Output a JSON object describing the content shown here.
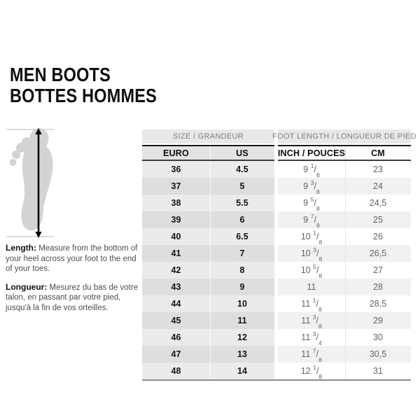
{
  "title": {
    "line1": "MEN BOOTS",
    "line2": "BOTTES HOMMES"
  },
  "foot_diagram": {
    "name": "foot-length-measurement-diagram",
    "elements": [
      "foot-outline",
      "vertical-double-arrow",
      "top-reference-line",
      "bottom-reference-line"
    ]
  },
  "instructions": {
    "length_label": "Length:",
    "length_text": " Measure from the bottom of your heel across your foot to the end of your toes.",
    "longueur_label": "Longueur:",
    "longueur_text": " Mesurez du bas de votre talon, en passant par votre pied, jusqu'à la fin de vos orteilles."
  },
  "table": {
    "group_headers": [
      {
        "label": "SIZE / GRANDEUR"
      },
      {
        "label": "FOOT LENGTH / LONGUEUR DE PIED"
      }
    ],
    "columns": [
      "EURO",
      "US",
      "INCH / POUCES",
      "CM"
    ],
    "rows": [
      {
        "euro": "36",
        "us": "4.5",
        "inch": "9 1/8",
        "cm": "23"
      },
      {
        "euro": "37",
        "us": "5",
        "inch": "9 3/8",
        "cm": "24"
      },
      {
        "euro": "38",
        "us": "5.5",
        "inch": "9 5/8",
        "cm": "24,5"
      },
      {
        "euro": "39",
        "us": "6",
        "inch": "9 7/8",
        "cm": "25"
      },
      {
        "euro": "40",
        "us": "6.5",
        "inch": "10 1/8",
        "cm": "26"
      },
      {
        "euro": "41",
        "us": "7",
        "inch": "10 3/8",
        "cm": "26,5"
      },
      {
        "euro": "42",
        "us": "8",
        "inch": "10 5/8",
        "cm": "27"
      },
      {
        "euro": "43",
        "us": "9",
        "inch": "11",
        "cm": "28"
      },
      {
        "euro": "44",
        "us": "10",
        "inch": "11 1/8",
        "cm": "28,5"
      },
      {
        "euro": "45",
        "us": "11",
        "inch": "11 3/8",
        "cm": "29"
      },
      {
        "euro": "46",
        "us": "12",
        "inch": "11 3/4",
        "cm": "30"
      },
      {
        "euro": "47",
        "us": "13",
        "inch": "11 7/8",
        "cm": "30,5"
      },
      {
        "euro": "48",
        "us": "14",
        "inch": "12 1/8",
        "cm": "31"
      }
    ]
  },
  "colors": {
    "title_text": "#0f0f0f",
    "group_header_bg": "#e8e8e8",
    "group_header_text": "#7e7e7e",
    "size_header_bg": "#e3e3e3",
    "size_row_light": "#ebebeb",
    "size_row_dark": "#dedede",
    "length_row_light": "#ffffff",
    "length_row_dark": "#f1f1f1",
    "length_value_text": "#636363",
    "header_border_top": "#161616",
    "header_border_bottom": "#3e3e3e",
    "table_bottom_border": "#8d8d8d",
    "foot_fill": "#d3d3d3",
    "reference_line": "#c6c6c6"
  }
}
